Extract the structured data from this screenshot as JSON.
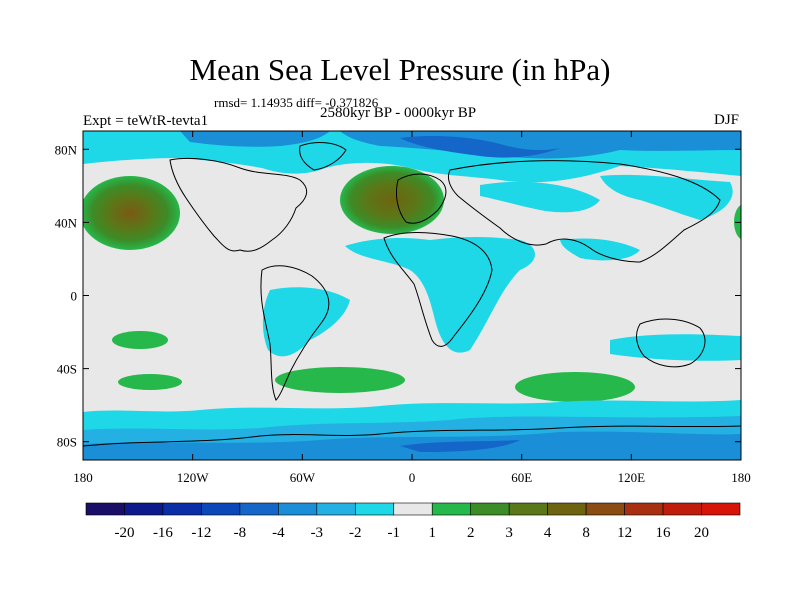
{
  "title": "Mean Sea Level Pressure (in hPa)",
  "stats": "rmsd= 1.14935 diff= -0.371826",
  "period": "2580kyr BP - 0000kyr BP",
  "experiment": "Expt = teWtR-tevta1",
  "season": "DJF",
  "map": {
    "lon_range": [
      -180,
      180
    ],
    "lat_range": [
      -90,
      90
    ],
    "lat_ticks": [
      {
        "value": 80,
        "label": "80N"
      },
      {
        "value": 40,
        "label": "40N"
      },
      {
        "value": 0,
        "label": "0"
      },
      {
        "value": -40,
        "label": "40S"
      },
      {
        "value": -80,
        "label": "80S"
      }
    ],
    "lon_ticks": [
      {
        "value": -180,
        "label": "180"
      },
      {
        "value": -120,
        "label": "120W"
      },
      {
        "value": -60,
        "label": "60W"
      },
      {
        "value": 0,
        "label": "0"
      },
      {
        "value": 60,
        "label": "60E"
      },
      {
        "value": 120,
        "label": "120E"
      },
      {
        "value": 180,
        "label": "180"
      }
    ],
    "background_color": "#e8e8e8"
  },
  "colorbar": {
    "colors": [
      "#1a0f66",
      "#0c1a8c",
      "#0a2ea8",
      "#0a47b8",
      "#1466c8",
      "#1a8ed6",
      "#24b0e2",
      "#1ed8e8",
      "#e8e8e8",
      "#26b84a",
      "#3c8c28",
      "#5a7818",
      "#6e6410",
      "#8a4c10",
      "#a83010",
      "#c01c0c",
      "#d81408"
    ],
    "labels": [
      "-20",
      "-16",
      "-12",
      "-8",
      "-4",
      "-3",
      "-2",
      "-1",
      "1",
      "2",
      "3",
      "4",
      "8",
      "12",
      "16",
      "20"
    ]
  }
}
